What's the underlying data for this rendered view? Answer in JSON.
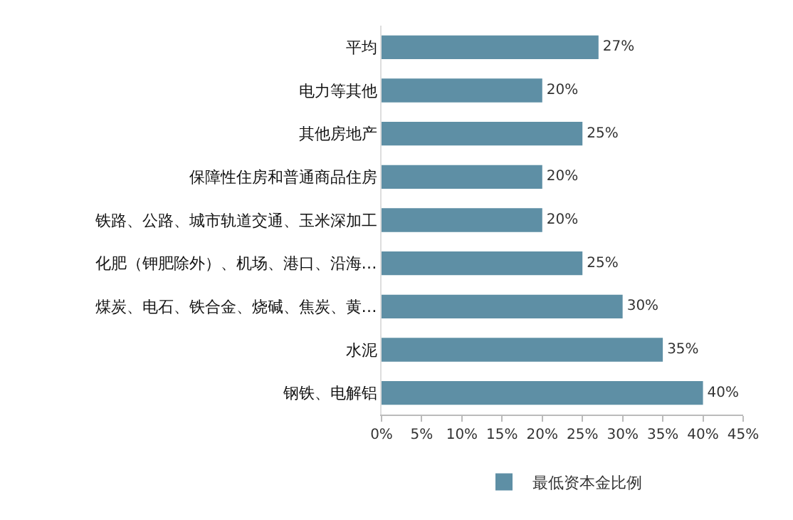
{
  "chart_data": {
    "type": "bar",
    "orientation": "horizontal",
    "categories": [
      "平均",
      "电力等其他",
      "其他房地产",
      "保障性住房和普通商品住房",
      "铁路、公路、城市轨道交通、玉米深加工",
      "化肥（钾肥除外）、机场、港口、沿海…",
      "煤炭、电石、铁合金、烧碱、焦炭、黄…",
      "水泥",
      "钢铁、电解铝"
    ],
    "series": [
      {
        "name": "最低资本金比例",
        "color": "#5e8fa5",
        "values": [
          27,
          20,
          25,
          20,
          20,
          25,
          30,
          35,
          40
        ],
        "value_labels": [
          "27%",
          "20%",
          "25%",
          "20%",
          "20%",
          "25%",
          "30%",
          "35%",
          "40%"
        ]
      }
    ],
    "xlim": [
      0,
      45
    ],
    "xticks": [
      {
        "value": 0,
        "label": "0%"
      },
      {
        "value": 5,
        "label": "5%"
      },
      {
        "value": 10,
        "label": "10%"
      },
      {
        "value": 15,
        "label": "15%"
      },
      {
        "value": 20,
        "label": "20%"
      },
      {
        "value": 25,
        "label": "25%"
      },
      {
        "value": 30,
        "label": "30%"
      },
      {
        "value": 35,
        "label": "35%"
      },
      {
        "value": 40,
        "label": "40%"
      },
      {
        "value": 45,
        "label": "45%"
      }
    ],
    "grid": false,
    "legend": "bottom"
  }
}
